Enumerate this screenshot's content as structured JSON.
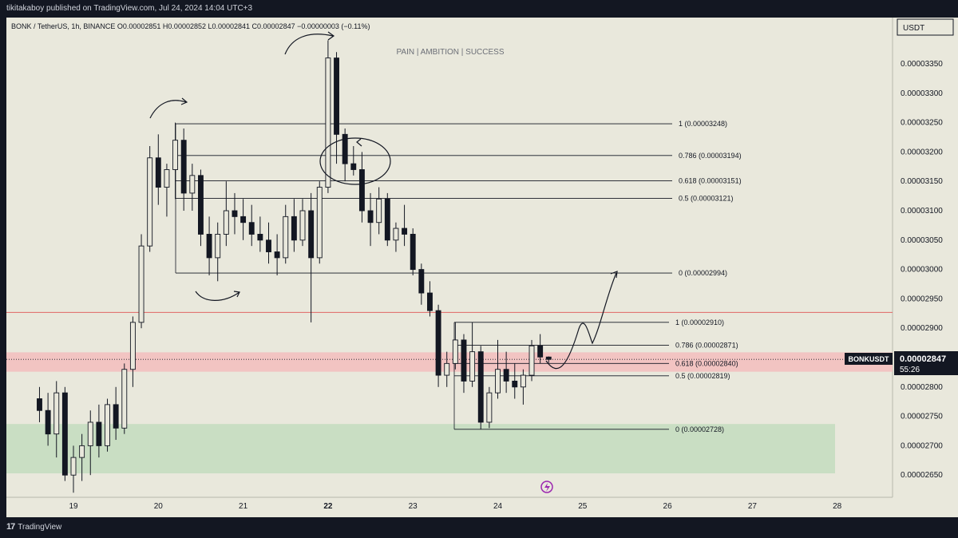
{
  "header": {
    "published_by": "tikitakaboy published on TradingView.com, Jul 24, 2024 14:04 UTC+3"
  },
  "symbol_info": {
    "legend": "BONK / TetherUS, 1h, BINANCE  O0.00002851  H0.00002852  L0.00002841  C0.00002847  −0.00000003 (−0.11%)"
  },
  "watermark": "PAIN  |  AMBITION  |  SUCCESS",
  "currency_button": "USDT",
  "price_label": {
    "symbol": "BONKUSDT",
    "price": "0.00002847",
    "countdown": "55:26"
  },
  "footer": {
    "brand": "TradingView"
  },
  "colors": {
    "chart_bg": "#e9e8dc",
    "candle": "#131722",
    "resistance_zone": "#f2c4c2",
    "support_zone": "#c9dec3",
    "red_line": "#e06666",
    "price_label_bg": "#131722"
  },
  "chart_data": {
    "type": "candlestick",
    "y_axis": {
      "ticks": [
        "0.00003350",
        "0.00003300",
        "0.00003250",
        "0.00003200",
        "0.00003150",
        "0.00003100",
        "0.00003050",
        "0.00003000",
        "0.00002950",
        "0.00002900",
        "0.00002800",
        "0.00002750",
        "0.00002700",
        "0.00002650"
      ],
      "ylim": [
        2.62e-05,
        3.39e-05
      ]
    },
    "x_axis": {
      "ticks": [
        "19",
        "20",
        "21",
        "22",
        "23",
        "24",
        "25",
        "26",
        "27",
        "28"
      ],
      "bold_tick": "22"
    },
    "fib_sets": [
      {
        "levels": [
          {
            "ratio": "1",
            "price": 3.248e-05,
            "label": "1 (0.00003248)"
          },
          {
            "ratio": "0.786",
            "price": 3.194e-05,
            "label": "0.786 (0.00003194)"
          },
          {
            "ratio": "0.618",
            "price": 3.151e-05,
            "label": "0.618 (0.00003151)"
          },
          {
            "ratio": "0.5",
            "price": 3.121e-05,
            "label": "0.5 (0.00003121)"
          },
          {
            "ratio": "0",
            "price": 2.994e-05,
            "label": "0 (0.00002994)"
          }
        ]
      },
      {
        "levels": [
          {
            "ratio": "1",
            "price": 2.91e-05,
            "label": "1 (0.00002910)"
          },
          {
            "ratio": "0.786",
            "price": 2.871e-05,
            "label": "0.786 (0.00002871)"
          },
          {
            "ratio": "0.618",
            "price": 2.84e-05,
            "label": "0.618 (0.00002840)"
          },
          {
            "ratio": "0.5",
            "price": 2.819e-05,
            "label": "0.5 (0.00002819)"
          },
          {
            "ratio": "0",
            "price": 2.728e-05,
            "label": "0 (0.00002728)"
          }
        ]
      }
    ],
    "horizontal_line_price": 2.927e-05,
    "resistance_zone": [
      2.826e-05,
      2.859e-05
    ],
    "support_zone": [
      2.653e-05,
      2.737e-05
    ],
    "candles": [
      {
        "t": 18.6,
        "o": 2.78e-05,
        "h": 2.8e-05,
        "l": 2.74e-05,
        "c": 2.76e-05
      },
      {
        "t": 18.7,
        "o": 2.76e-05,
        "h": 2.79e-05,
        "l": 2.7e-05,
        "c": 2.72e-05
      },
      {
        "t": 18.8,
        "o": 2.72e-05,
        "h": 2.81e-05,
        "l": 2.68e-05,
        "c": 2.79e-05
      },
      {
        "t": 18.9,
        "o": 2.79e-05,
        "h": 2.8e-05,
        "l": 2.64e-05,
        "c": 2.65e-05
      },
      {
        "t": 19.0,
        "o": 2.65e-05,
        "h": 2.7e-05,
        "l": 2.62e-05,
        "c": 2.68e-05
      },
      {
        "t": 19.1,
        "o": 2.68e-05,
        "h": 2.72e-05,
        "l": 2.64e-05,
        "c": 2.7e-05
      },
      {
        "t": 19.2,
        "o": 2.7e-05,
        "h": 2.76e-05,
        "l": 2.65e-05,
        "c": 2.74e-05
      },
      {
        "t": 19.3,
        "o": 2.74e-05,
        "h": 2.77e-05,
        "l": 2.68e-05,
        "c": 2.7e-05
      },
      {
        "t": 19.4,
        "o": 2.7e-05,
        "h": 2.78e-05,
        "l": 2.69e-05,
        "c": 2.77e-05
      },
      {
        "t": 19.5,
        "o": 2.77e-05,
        "h": 2.8e-05,
        "l": 2.71e-05,
        "c": 2.73e-05
      },
      {
        "t": 19.6,
        "o": 2.73e-05,
        "h": 2.84e-05,
        "l": 2.72e-05,
        "c": 2.83e-05
      },
      {
        "t": 19.7,
        "o": 2.83e-05,
        "h": 2.92e-05,
        "l": 2.8e-05,
        "c": 2.91e-05
      },
      {
        "t": 19.8,
        "o": 2.91e-05,
        "h": 3.06e-05,
        "l": 2.9e-05,
        "c": 3.04e-05
      },
      {
        "t": 19.9,
        "o": 3.04e-05,
        "h": 3.21e-05,
        "l": 3.03e-05,
        "c": 3.19e-05
      },
      {
        "t": 20.0,
        "o": 3.19e-05,
        "h": 3.23e-05,
        "l": 3.11e-05,
        "c": 3.14e-05
      },
      {
        "t": 20.1,
        "o": 3.14e-05,
        "h": 3.18e-05,
        "l": 3.09e-05,
        "c": 3.17e-05
      },
      {
        "t": 20.2,
        "o": 3.17e-05,
        "h": 3.25e-05,
        "l": 3.12e-05,
        "c": 3.22e-05
      },
      {
        "t": 20.3,
        "o": 3.22e-05,
        "h": 3.24e-05,
        "l": 3.1e-05,
        "c": 3.13e-05
      },
      {
        "t": 20.4,
        "o": 3.13e-05,
        "h": 3.18e-05,
        "l": 3.1e-05,
        "c": 3.16e-05
      },
      {
        "t": 20.5,
        "o": 3.16e-05,
        "h": 3.17e-05,
        "l": 3.04e-05,
        "c": 3.06e-05
      },
      {
        "t": 20.6,
        "o": 3.06e-05,
        "h": 3.09e-05,
        "l": 2.99e-05,
        "c": 3.02e-05
      },
      {
        "t": 20.7,
        "o": 3.02e-05,
        "h": 3.08e-05,
        "l": 2.98e-05,
        "c": 3.06e-05
      },
      {
        "t": 20.8,
        "o": 3.06e-05,
        "h": 3.15e-05,
        "l": 3.04e-05,
        "c": 3.1e-05
      },
      {
        "t": 20.9,
        "o": 3.1e-05,
        "h": 3.13e-05,
        "l": 3.06e-05,
        "c": 3.09e-05
      },
      {
        "t": 21.0,
        "o": 3.09e-05,
        "h": 3.12e-05,
        "l": 3.05e-05,
        "c": 3.08e-05
      },
      {
        "t": 21.1,
        "o": 3.08e-05,
        "h": 3.11e-05,
        "l": 3.04e-05,
        "c": 3.06e-05
      },
      {
        "t": 21.2,
        "o": 3.06e-05,
        "h": 3.09e-05,
        "l": 3.03e-05,
        "c": 3.05e-05
      },
      {
        "t": 21.3,
        "o": 3.05e-05,
        "h": 3.08e-05,
        "l": 3.01e-05,
        "c": 3.03e-05
      },
      {
        "t": 21.4,
        "o": 3.03e-05,
        "h": 3.06e-05,
        "l": 2.99e-05,
        "c": 3.02e-05
      },
      {
        "t": 21.5,
        "o": 3.02e-05,
        "h": 3.11e-05,
        "l": 3.01e-05,
        "c": 3.09e-05
      },
      {
        "t": 21.6,
        "o": 3.09e-05,
        "h": 3.12e-05,
        "l": 3.03e-05,
        "c": 3.05e-05
      },
      {
        "t": 21.7,
        "o": 3.05e-05,
        "h": 3.12e-05,
        "l": 3.04e-05,
        "c": 3.1e-05
      },
      {
        "t": 21.8,
        "o": 3.1e-05,
        "h": 3.13e-05,
        "l": 2.91e-05,
        "c": 3.02e-05
      },
      {
        "t": 21.9,
        "o": 3.02e-05,
        "h": 3.15e-05,
        "l": 3.01e-05,
        "c": 3.14e-05
      },
      {
        "t": 22.0,
        "o": 3.14e-05,
        "h": 3.39e-05,
        "l": 3.13e-05,
        "c": 3.36e-05
      },
      {
        "t": 22.1,
        "o": 3.36e-05,
        "h": 3.37e-05,
        "l": 3.18e-05,
        "c": 3.23e-05
      },
      {
        "t": 22.2,
        "o": 3.23e-05,
        "h": 3.24e-05,
        "l": 3.15e-05,
        "c": 3.18e-05
      },
      {
        "t": 22.3,
        "o": 3.18e-05,
        "h": 3.21e-05,
        "l": 3.16e-05,
        "c": 3.17e-05
      },
      {
        "t": 22.4,
        "o": 3.17e-05,
        "h": 3.2e-05,
        "l": 3.08e-05,
        "c": 3.1e-05
      },
      {
        "t": 22.5,
        "o": 3.1e-05,
        "h": 3.13e-05,
        "l": 3.04e-05,
        "c": 3.08e-05
      },
      {
        "t": 22.6,
        "o": 3.08e-05,
        "h": 3.14e-05,
        "l": 3.06e-05,
        "c": 3.12e-05
      },
      {
        "t": 22.7,
        "o": 3.12e-05,
        "h": 3.13e-05,
        "l": 3.04e-05,
        "c": 3.05e-05
      },
      {
        "t": 22.8,
        "o": 3.05e-05,
        "h": 3.08e-05,
        "l": 3.03e-05,
        "c": 3.07e-05
      },
      {
        "t": 22.9,
        "o": 3.07e-05,
        "h": 3.11e-05,
        "l": 3.04e-05,
        "c": 3.06e-05
      },
      {
        "t": 23.0,
        "o": 3.06e-05,
        "h": 3.07e-05,
        "l": 2.99e-05,
        "c": 3e-05
      },
      {
        "t": 23.1,
        "o": 3e-05,
        "h": 3.01e-05,
        "l": 2.94e-05,
        "c": 2.96e-05
      },
      {
        "t": 23.2,
        "o": 2.96e-05,
        "h": 2.98e-05,
        "l": 2.92e-05,
        "c": 2.93e-05
      },
      {
        "t": 23.3,
        "o": 2.93e-05,
        "h": 2.94e-05,
        "l": 2.8e-05,
        "c": 2.82e-05
      },
      {
        "t": 23.4,
        "o": 2.82e-05,
        "h": 2.86e-05,
        "l": 2.8e-05,
        "c": 2.84e-05
      },
      {
        "t": 23.5,
        "o": 2.84e-05,
        "h": 2.91e-05,
        "l": 2.83e-05,
        "c": 2.88e-05
      },
      {
        "t": 23.6,
        "o": 2.88e-05,
        "h": 2.89e-05,
        "l": 2.79e-05,
        "c": 2.81e-05
      },
      {
        "t": 23.7,
        "o": 2.81e-05,
        "h": 2.91e-05,
        "l": 2.8e-05,
        "c": 2.86e-05
      },
      {
        "t": 23.8,
        "o": 2.86e-05,
        "h": 2.87e-05,
        "l": 2.728e-05,
        "c": 2.74e-05
      },
      {
        "t": 23.9,
        "o": 2.74e-05,
        "h": 2.8e-05,
        "l": 2.73e-05,
        "c": 2.79e-05
      },
      {
        "t": 24.0,
        "o": 2.79e-05,
        "h": 2.88e-05,
        "l": 2.78e-05,
        "c": 2.83e-05
      },
      {
        "t": 24.1,
        "o": 2.83e-05,
        "h": 2.86e-05,
        "l": 2.79e-05,
        "c": 2.81e-05
      },
      {
        "t": 24.2,
        "o": 2.81e-05,
        "h": 2.84e-05,
        "l": 2.78e-05,
        "c": 2.8e-05
      },
      {
        "t": 24.3,
        "o": 2.8e-05,
        "h": 2.83e-05,
        "l": 2.77e-05,
        "c": 2.82e-05
      },
      {
        "t": 24.4,
        "o": 2.82e-05,
        "h": 2.88e-05,
        "l": 2.81e-05,
        "c": 2.87e-05
      },
      {
        "t": 24.5,
        "o": 2.87e-05,
        "h": 2.89e-05,
        "l": 2.84e-05,
        "c": 2.851e-05
      },
      {
        "t": 24.6,
        "o": 2.851e-05,
        "h": 2.852e-05,
        "l": 2.841e-05,
        "c": 2.847e-05
      }
    ]
  }
}
